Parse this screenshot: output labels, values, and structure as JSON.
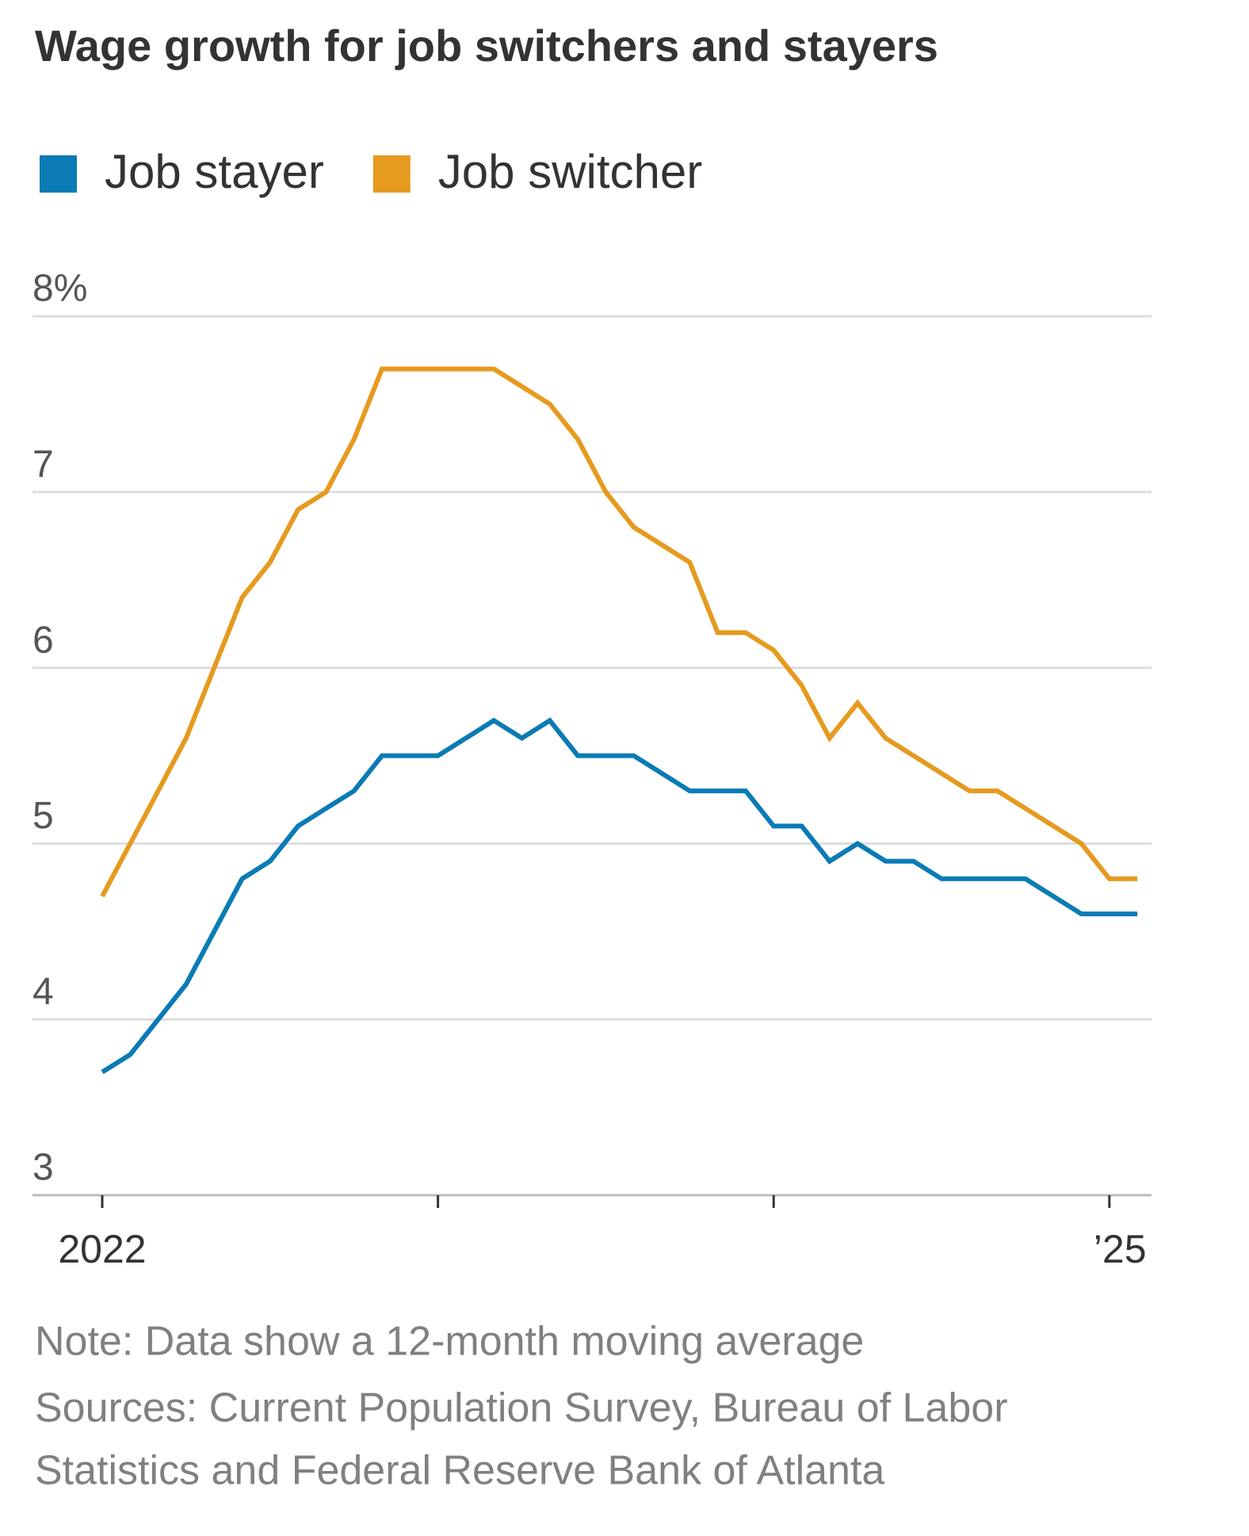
{
  "chart_data": {
    "type": "line",
    "title": "Wage growth for job switchers and stayers",
    "categories": [
      "2022",
      null,
      null,
      null,
      null,
      null,
      null,
      null,
      null,
      null,
      null,
      null,
      null,
      null,
      null,
      null,
      null,
      null,
      null,
      null,
      null,
      null,
      null,
      null,
      null,
      null,
      null,
      null,
      null,
      null,
      null,
      null,
      null,
      null,
      null,
      null,
      "’25",
      null
    ],
    "series": [
      {
        "name": "Job stayer",
        "color": "#0a7bb5",
        "values": [
          3.7,
          3.8,
          4.0,
          4.2,
          4.5,
          4.8,
          4.9,
          5.1,
          5.2,
          5.3,
          5.5,
          5.5,
          5.5,
          5.6,
          5.7,
          5.6,
          5.7,
          5.5,
          5.5,
          5.5,
          5.4,
          5.3,
          5.3,
          5.3,
          5.1,
          5.1,
          4.9,
          5.0,
          4.9,
          4.9,
          4.8,
          4.8,
          4.8,
          4.8,
          4.7,
          4.6,
          4.6,
          4.6
        ]
      },
      {
        "name": "Job switcher",
        "color": "#e69a1f",
        "values": [
          4.7,
          5.0,
          5.3,
          5.6,
          6.0,
          6.4,
          6.6,
          6.9,
          7.0,
          7.3,
          7.7,
          7.7,
          7.7,
          7.7,
          7.7,
          7.6,
          7.5,
          7.3,
          7.0,
          6.8,
          6.7,
          6.6,
          6.2,
          6.2,
          6.1,
          5.9,
          5.6,
          5.8,
          5.6,
          5.5,
          5.4,
          5.3,
          5.3,
          5.2,
          5.1,
          5.0,
          4.8,
          4.8
        ]
      }
    ],
    "ylim": [
      3,
      8
    ],
    "yticks": [
      3,
      4,
      5,
      6,
      7,
      {
        "value": 8,
        "label": "8%"
      }
    ],
    "grid": true,
    "note": "Note: Data show a 12-month moving average",
    "source": [
      "Sources: Current Population Survey, Bureau of Labor",
      "Statistics and Federal Reserve Bank of Atlanta"
    ]
  }
}
